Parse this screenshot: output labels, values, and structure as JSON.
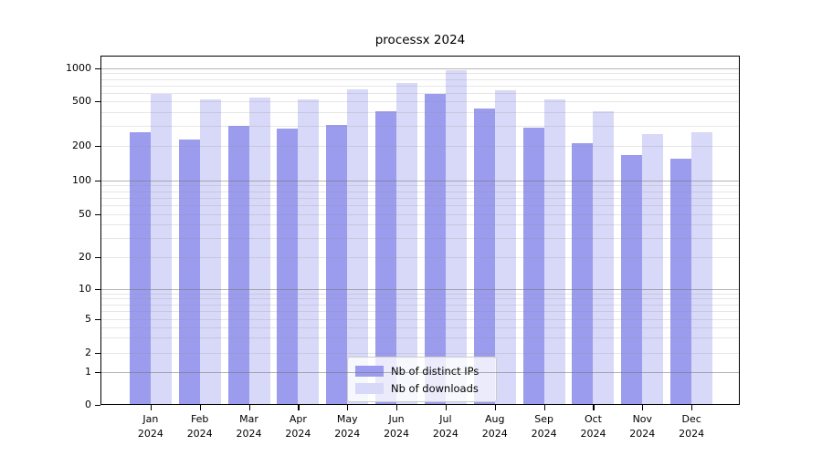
{
  "chart_data": {
    "type": "bar",
    "title": "processx 2024",
    "categories": [
      {
        "month": "Jan",
        "year": "2024"
      },
      {
        "month": "Feb",
        "year": "2024"
      },
      {
        "month": "Mar",
        "year": "2024"
      },
      {
        "month": "Apr",
        "year": "2024"
      },
      {
        "month": "May",
        "year": "2024"
      },
      {
        "month": "Jun",
        "year": "2024"
      },
      {
        "month": "Jul",
        "year": "2024"
      },
      {
        "month": "Aug",
        "year": "2024"
      },
      {
        "month": "Sep",
        "year": "2024"
      },
      {
        "month": "Oct",
        "year": "2024"
      },
      {
        "month": "Nov",
        "year": "2024"
      },
      {
        "month": "Dec",
        "year": "2024"
      }
    ],
    "series": [
      {
        "name": "Nb of distinct IPs",
        "color": "#9c9cee",
        "values": [
          265,
          230,
          305,
          285,
          310,
          410,
          585,
          430,
          290,
          210,
          165,
          155
        ]
      },
      {
        "name": "Nb of downloads",
        "color": "#d8d8f8",
        "values": [
          590,
          520,
          540,
          525,
          645,
          740,
          950,
          635,
          520,
          410,
          255,
          265
        ]
      }
    ],
    "y_axis": {
      "scale": "symlog",
      "tick_values": [
        0,
        1,
        2,
        5,
        10,
        20,
        50,
        100,
        200,
        500,
        1000
      ],
      "tick_labels": [
        "0",
        "1",
        "2",
        "5",
        "10",
        "20",
        "50",
        "100",
        "200",
        "500",
        "1000"
      ],
      "major_grid_values": [
        1,
        10,
        100,
        1000
      ],
      "minor_grid_values": [
        2,
        3,
        4,
        5,
        6,
        7,
        8,
        9,
        20,
        30,
        40,
        50,
        60,
        70,
        80,
        90,
        200,
        300,
        400,
        500,
        600,
        700,
        800,
        900
      ],
      "ylim": [
        0,
        1300
      ]
    },
    "legend": {
      "location": "lower center"
    },
    "grid": "on",
    "colors": {
      "major_grid": "rgba(110,110,110,0.50)",
      "minor_grid": "rgba(140,140,140,0.22)",
      "spine": "#000000",
      "tick": "#000000",
      "background": "#ffffff",
      "legend_border": "#cccccc"
    }
  }
}
